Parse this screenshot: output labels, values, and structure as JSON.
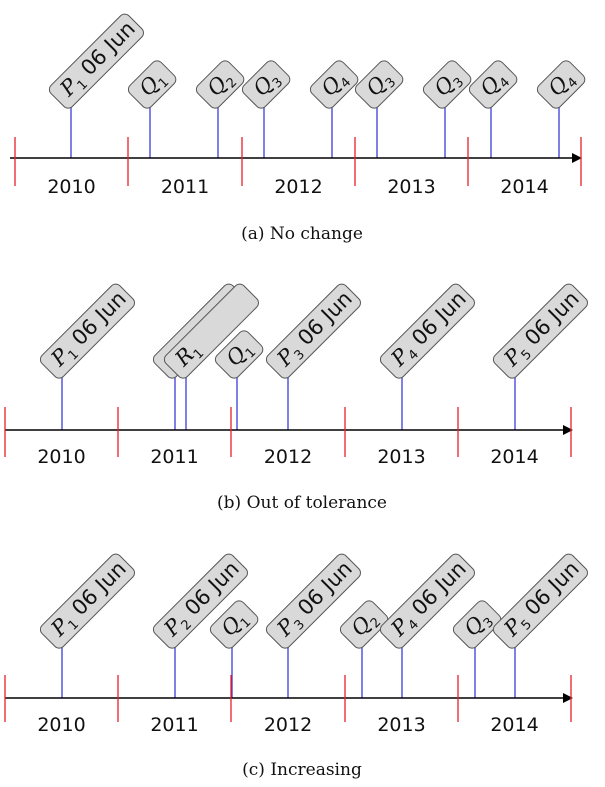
{
  "colors": {
    "axis": "#000000",
    "year_tick": "#e8202a",
    "event_marker": "#2b2bd6",
    "tag_fill": "#d9d9d9",
    "tag_stroke": "#555555"
  },
  "panels": [
    {
      "caption": "(a) No change",
      "years": [
        "2010",
        "2011",
        "2012",
        "2013",
        "2014"
      ],
      "tags": [
        {
          "label": "P",
          "sub": "1",
          "suffix": " 06 Jun"
        },
        {
          "label": "Q",
          "sub": "1",
          "suffix": ""
        },
        {
          "label": "Q",
          "sub": "2",
          "suffix": ""
        },
        {
          "label": "Q",
          "sub": "3",
          "suffix": ""
        },
        {
          "label": "Q",
          "sub": "4",
          "suffix": ""
        },
        {
          "label": "Q",
          "sub": "3",
          "suffix": ""
        },
        {
          "label": "Q",
          "sub": "3",
          "suffix": ""
        },
        {
          "label": "Q",
          "sub": "4",
          "suffix": ""
        },
        {
          "label": "Q",
          "sub": "4",
          "suffix": ""
        }
      ]
    },
    {
      "caption": "(b) Out of tolerance",
      "years": [
        "2010",
        "2011",
        "2012",
        "2013",
        "2014"
      ],
      "tags": [
        {
          "label": "P",
          "sub": "1",
          "suffix": " 06 Jun"
        },
        {
          "label": "",
          "sub": "",
          "suffix": ""
        },
        {
          "label": "R",
          "sub": "1",
          "suffix": ""
        },
        {
          "label": "Q",
          "sub": "1",
          "suffix": ""
        },
        {
          "label": "P",
          "sub": "3",
          "suffix": " 06 Jun"
        },
        {
          "label": "P",
          "sub": "4",
          "suffix": " 06 Jun"
        },
        {
          "label": "P",
          "sub": "5",
          "suffix": " 06 Jun"
        }
      ]
    },
    {
      "caption": "(c) Increasing",
      "years": [
        "2010",
        "2011",
        "2012",
        "2013",
        "2014"
      ],
      "tags": [
        {
          "label": "P",
          "sub": "1",
          "suffix": " 06 Jun"
        },
        {
          "label": "P",
          "sub": "2",
          "suffix": " 06 Jun"
        },
        {
          "label": "Q",
          "sub": "1",
          "suffix": ""
        },
        {
          "label": "P",
          "sub": "3",
          "suffix": " 06 Jun"
        },
        {
          "label": "Q",
          "sub": "2",
          "suffix": ""
        },
        {
          "label": "P",
          "sub": "4",
          "suffix": " 06 Jun"
        },
        {
          "label": "Q",
          "sub": "3",
          "suffix": ""
        },
        {
          "label": "P",
          "sub": "5",
          "suffix": " 06 Jun"
        }
      ]
    }
  ]
}
